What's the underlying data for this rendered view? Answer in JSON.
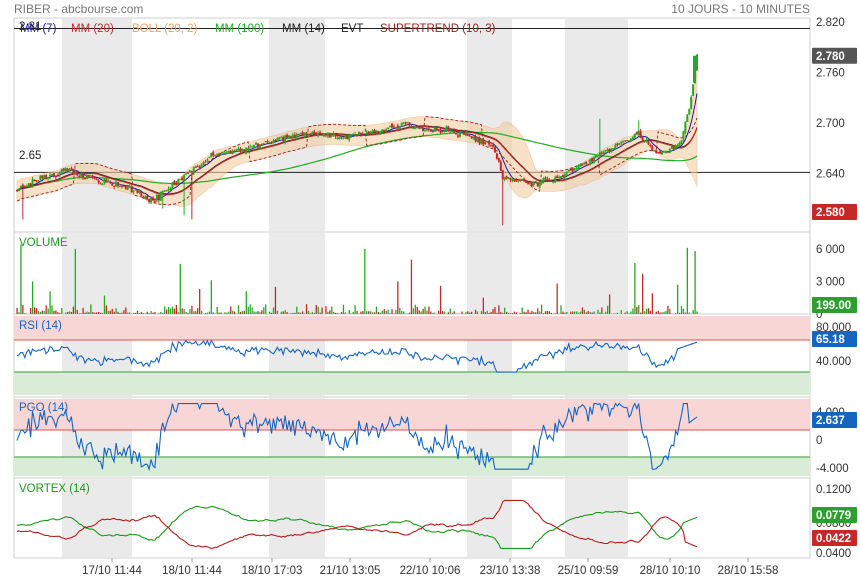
{
  "header": {
    "left_title": "RIBER - abcbourse.com",
    "right_title": "10 JOURS - 10 MINUTES"
  },
  "colors": {
    "green": "#22aa22",
    "red": "#c62828",
    "blue": "#1565c0",
    "orange_band": "#f2cfa4",
    "session_shade": "#e6e6e6",
    "rsi_top_zone": "#f9d6d6",
    "rsi_bottom_zone": "#d8ecd8",
    "price_badge_dark": "#555555",
    "price_badge_red": "#c62828",
    "price_badge_green": "#2e9e2e"
  },
  "chart_data": [
    {
      "panel": "price",
      "type": "candlestick",
      "legend": [
        {
          "label": "MM (7)",
          "color": "#1a1aa8"
        },
        {
          "label": "MM (20)",
          "color": "#c62828"
        },
        {
          "label": "BOLL (20, 2)",
          "color": "#f0a060"
        },
        {
          "label": "MM (100)",
          "color": "#22aa22"
        },
        {
          "label": "MM (14)",
          "color": "#222222"
        },
        {
          "label": "EVT",
          "color": "#222222"
        },
        {
          "label": "SUPERTREND (10, 3)",
          "color": "#9b1c1c"
        }
      ],
      "top_left_level": "2.81",
      "mid_left_level": "2.65",
      "y_ticks": [
        "2.820",
        "2.760",
        "2.700",
        "2.640"
      ],
      "ylim": [
        2.57,
        2.825
      ],
      "last_price": "2.780",
      "low_price": "2.580",
      "anchors": [
        [
          0,
          2.62
        ],
        [
          10,
          2.63
        ],
        [
          25,
          2.645
        ],
        [
          40,
          2.632
        ],
        [
          55,
          2.625
        ],
        [
          70,
          2.608
        ],
        [
          85,
          2.635
        ],
        [
          100,
          2.66
        ],
        [
          120,
          2.672
        ],
        [
          135,
          2.68
        ],
        [
          150,
          2.688
        ],
        [
          170,
          2.684
        ],
        [
          185,
          2.69
        ],
        [
          200,
          2.698
        ],
        [
          215,
          2.692
        ],
        [
          230,
          2.687
        ],
        [
          245,
          2.673
        ],
        [
          250,
          2.635
        ],
        [
          265,
          2.628
        ],
        [
          280,
          2.635
        ],
        [
          295,
          2.656
        ],
        [
          310,
          2.675
        ],
        [
          320,
          2.688
        ],
        [
          330,
          2.662
        ],
        [
          337,
          2.67
        ],
        [
          342,
          2.68
        ],
        [
          347,
          2.728
        ],
        [
          350,
          2.78
        ]
      ]
    },
    {
      "panel": "volume",
      "type": "bar",
      "label": "VOLUME",
      "y_ticks": [
        "6 000",
        "3 000",
        "0"
      ],
      "ylim": [
        0,
        7000
      ],
      "last_value": "199.00"
    },
    {
      "panel": "rsi",
      "type": "line",
      "label": "RSI (14)",
      "y_ticks": [
        "80.000",
        "40.000"
      ],
      "ylim": [
        0,
        100
      ],
      "last_value": "65.18"
    },
    {
      "panel": "pgo",
      "type": "line",
      "label": "PGO (14)",
      "y_ticks": [
        "4.000",
        "0",
        "-4.000"
      ],
      "ylim": [
        -5.5,
        5.5
      ],
      "last_value": "2.637"
    },
    {
      "panel": "vortex",
      "type": "line",
      "label": "VORTEX (14)",
      "y_ticks": [
        "0.1200",
        "0.0800",
        "0.0400"
      ],
      "ylim": [
        0.028,
        0.128
      ],
      "last_value_plus": "0.0779",
      "last_value_minus": "0.0422"
    }
  ],
  "x_axis": {
    "labels": [
      "17/10 11:44",
      "18/10 11:44",
      "18/10 17:03",
      "21/10 13:05",
      "22/10 10:06",
      "23/10 13:38",
      "25/10 09:59",
      "28/10 10:10",
      "28/10 15:58"
    ]
  }
}
